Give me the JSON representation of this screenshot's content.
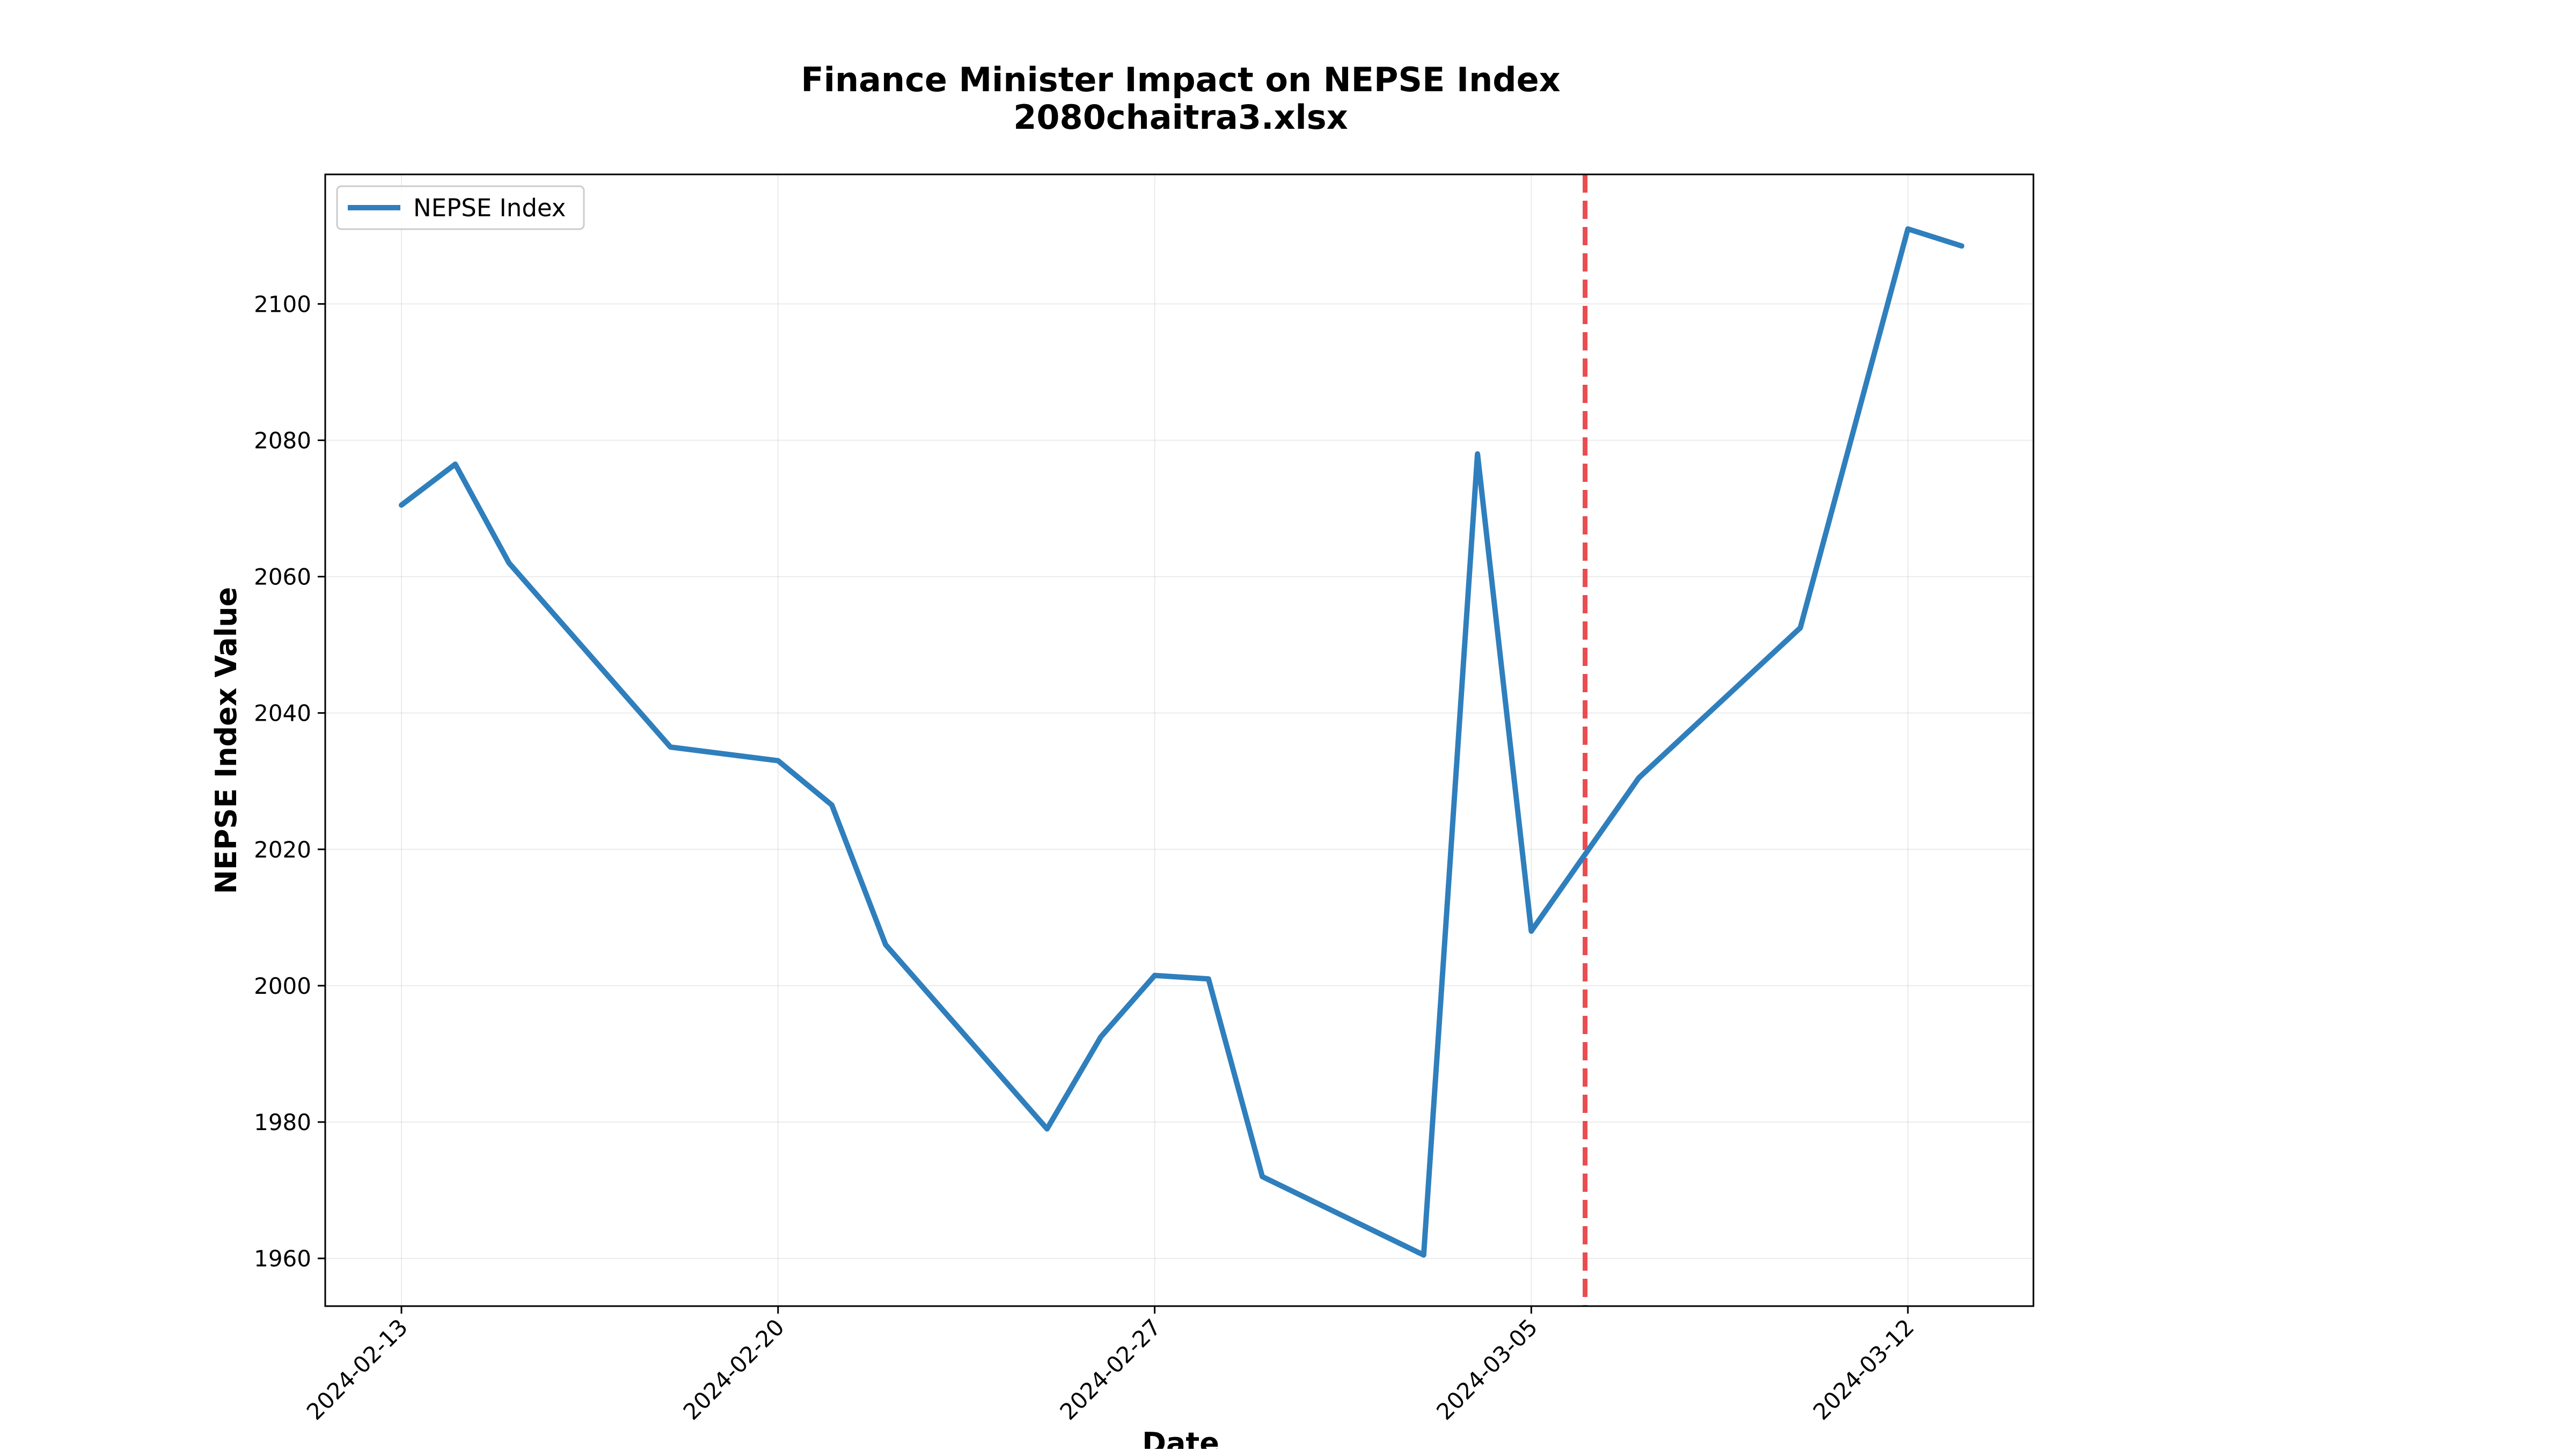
{
  "chart_data": {
    "type": "line",
    "title": "Finance Minister Impact on NEPSE Index",
    "subtitle": "2080chaitra3.xlsx",
    "xlabel": "Date",
    "ylabel": "NEPSE Index Value",
    "x_tick_labels": [
      "2024-02-13",
      "2024-02-20",
      "2024-02-27",
      "2024-03-05",
      "2024-03-12"
    ],
    "y_tick_labels": [
      "1960",
      "1980",
      "2000",
      "2020",
      "2040",
      "2060",
      "2080",
      "2100"
    ],
    "xlim": [
      "2024-02-11 14:00",
      "2024-03-14 08:00"
    ],
    "ylim": [
      1953,
      2119
    ],
    "grid": true,
    "legend_position": "top-left",
    "series": [
      {
        "name": "NEPSE Index",
        "color": "#2f7fbd",
        "x": [
          "2024-02-13",
          "2024-02-14",
          "2024-02-15",
          "2024-02-18",
          "2024-02-20",
          "2024-02-21",
          "2024-02-22",
          "2024-02-25",
          "2024-02-26",
          "2024-02-27",
          "2024-02-28",
          "2024-02-29",
          "2024-03-03",
          "2024-03-04",
          "2024-03-05",
          "2024-03-07",
          "2024-03-10",
          "2024-03-12",
          "2024-03-13"
        ],
        "y": [
          2070.5,
          2076.5,
          2062.0,
          2035.0,
          2033.0,
          2026.5,
          2006.0,
          1979.0,
          1992.5,
          2001.5,
          2001.0,
          1972.0,
          1960.5,
          2078.0,
          2008.0,
          2030.5,
          2052.5,
          2111.0,
          2108.5
        ]
      }
    ],
    "annotations": [
      {
        "type": "vertical-line",
        "x": "2024-03-06",
        "color": "#e8383d",
        "style": "dashed"
      }
    ]
  }
}
